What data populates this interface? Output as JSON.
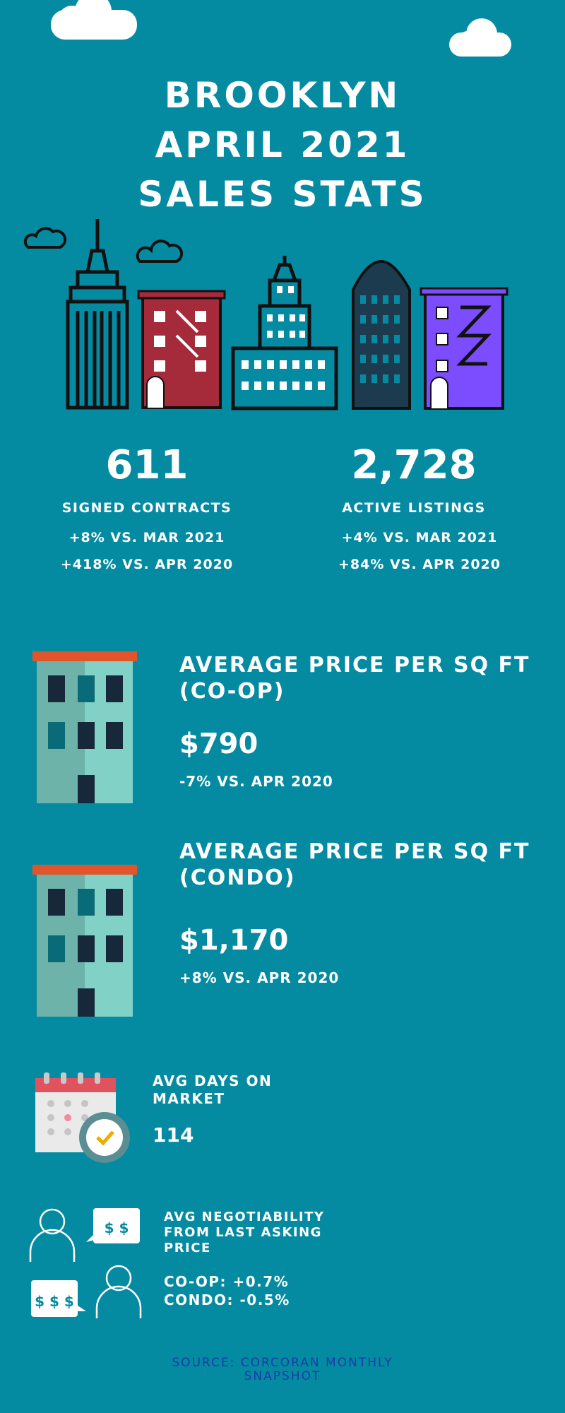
{
  "title": {
    "line1": "BROOKLYN",
    "line2": "APRIL 2021",
    "line3": "SALES STATS"
  },
  "stats": {
    "signed": {
      "value": "611",
      "label": "SIGNED CONTRACTS",
      "sub1": "+8% VS. MAR 2021",
      "sub2": "+418% VS. APR 2020"
    },
    "active": {
      "value": "2,728",
      "label": "ACTIVE LISTINGS",
      "sub1": "+4% VS. MAR 2021",
      "sub2": "+84% VS. APR 2020"
    }
  },
  "coop": {
    "heading1": "AVERAGE PRICE PER SQ FT",
    "heading2": "(CO-OP)",
    "price": "$790",
    "change": "-7% VS. APR 2020"
  },
  "condo": {
    "heading1": "AVERAGE PRICE PER SQ FT",
    "heading2": "(CONDO)",
    "price": "$1,170",
    "change": "+8% VS. APR 2020"
  },
  "days": {
    "heading1": "AVG DAYS ON",
    "heading2": "MARKET",
    "value": "114"
  },
  "negotiability": {
    "heading1": "AVG NEGOTIABILITY",
    "heading2": "FROM LAST ASKING",
    "heading3": "PRICE",
    "coop": "CO-OP: +0.7%",
    "condo": "CONDO: -0.5%",
    "bubble1": "$ $",
    "bubble2": "$ $ $"
  },
  "source": {
    "line1": "SOURCE: CORCORAN MONTHLY",
    "line2": "SNAPSHOT"
  },
  "colors": {
    "background": "#048ba2",
    "brick": "#a52a3a",
    "purple": "#7c4dff",
    "source_text": "#1d3aa8",
    "roof": "#e2552b"
  },
  "icons": [
    "cloud-icon",
    "skyline-illustration",
    "building-icon",
    "calendar-clock-icon",
    "people-money-icon"
  ]
}
